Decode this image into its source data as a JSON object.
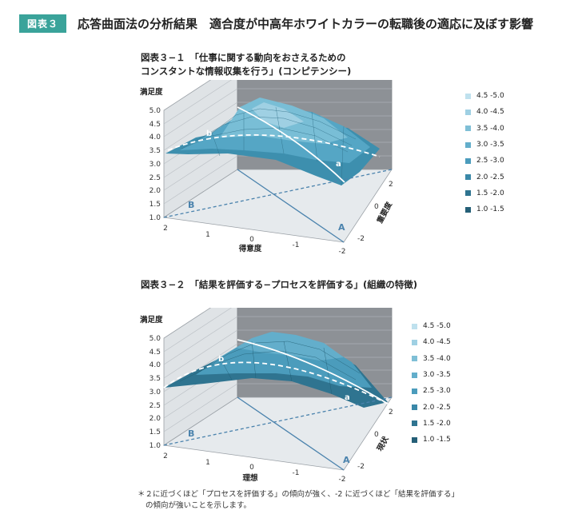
{
  "header": {
    "badge": "図表３",
    "title": "応答曲面法の分析結果　適合度が中高年ホワイトカラーの転職後の適応に及ぼす影響"
  },
  "chart_data": [
    {
      "type": "surface",
      "title_line1": "図表３−１　「仕事に関する動向をおさえるための",
      "title_line2": "コンスタントな情報収集を行う」(コンピテンシー)",
      "zlabel": "満足度",
      "xlabel": "得意度",
      "ylabel": "重要度",
      "zticks": [
        "5.0",
        "4.5",
        "4.0",
        "3.5",
        "3.0",
        "2.5",
        "2.0",
        "1.5",
        "1.0"
      ],
      "xticks": [
        "2",
        "1",
        "0",
        "-1",
        "-2"
      ],
      "yticks": [
        "2",
        "0",
        "-2"
      ],
      "line_labels": {
        "A": "A",
        "B": "B",
        "a": "a",
        "b": "b"
      },
      "legend": [
        "4.5 -5.0",
        "4.0 -4.5",
        "3.5 -4.0",
        "3.0 -3.5",
        "2.5 -3.0",
        "2.0 -2.5",
        "1.5 -2.0",
        "1.0 -1.5"
      ]
    },
    {
      "type": "surface",
      "title_line1": "図表３−２　「結果を評価する−プロセスを評価する」(組織の特徴)",
      "zlabel": "満足度",
      "xlabel": "理想",
      "ylabel": "現状",
      "zticks": [
        "5.0",
        "4.5",
        "4.0",
        "3.5",
        "3.0",
        "2.5",
        "2.0",
        "1.5",
        "1.0"
      ],
      "xticks": [
        "2",
        "1",
        "0",
        "-1",
        "-2"
      ],
      "yticks": [
        "2",
        "0",
        "-2"
      ],
      "line_labels": {
        "A": "A",
        "B": "B",
        "a": "a",
        "b": "b"
      },
      "legend": [
        "4.5 -5.0",
        "4.0 -4.5",
        "3.5 -4.0",
        "3.0 -3.5",
        "2.5 -3.0",
        "2.0 -2.5",
        "1.5 -2.0",
        "1.0 -1.5"
      ]
    }
  ],
  "legend_colors": [
    "#bfe1ee",
    "#9fd0e3",
    "#7fbfd6",
    "#63aecb",
    "#4b9cbc",
    "#3a88a8",
    "#2f7490",
    "#255f77"
  ],
  "footnote": {
    "line1": "＊２に近づくほど「プロセスを評価する」の傾向が強く、-2 に近づくほど「結果を評価する」",
    "line2": "の傾向が強いことを示します。"
  }
}
